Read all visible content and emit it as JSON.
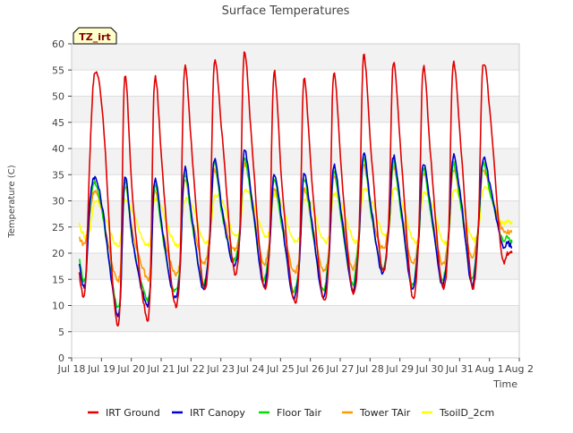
{
  "chart_data": {
    "type": "line",
    "title": "Surface Temperatures",
    "xlabel": "Time",
    "ylabel": "Temperature (C)",
    "badge": "TZ_irt",
    "ylim": [
      0,
      60
    ],
    "yticks": [
      0,
      5,
      10,
      15,
      20,
      25,
      30,
      35,
      40,
      45,
      50,
      55,
      60
    ],
    "xlim": [
      0,
      15
    ],
    "xticks": [
      {
        "x": 0,
        "label": "Jul 18"
      },
      {
        "x": 1,
        "label": "Jul 19"
      },
      {
        "x": 2,
        "label": "Jul 20"
      },
      {
        "x": 3,
        "label": "Jul 21"
      },
      {
        "x": 4,
        "label": "Jul 22"
      },
      {
        "x": 5,
        "label": "Jul 23"
      },
      {
        "x": 6,
        "label": "Jul 24"
      },
      {
        "x": 7,
        "label": "Jul 25"
      },
      {
        "x": 8,
        "label": "Jul 26"
      },
      {
        "x": 9,
        "label": "Jul 27"
      },
      {
        "x": 10,
        "label": "Jul 28"
      },
      {
        "x": 11,
        "label": "Jul 29"
      },
      {
        "x": 12,
        "label": "Jul 30"
      },
      {
        "x": 13,
        "label": "Jul 31"
      },
      {
        "x": 14,
        "label": "Aug 1"
      },
      {
        "x": 15,
        "label": "Aug 2"
      }
    ],
    "grid": "horizontal bands",
    "legend": "bottom",
    "series": [
      {
        "name": "IRT Ground",
        "color": "#e00000",
        "x": [
          0.25,
          0.45,
          0.62,
          0.78,
          1.05,
          1.4,
          1.62,
          1.78,
          2.05,
          2.4,
          2.62,
          2.78,
          3.05,
          3.4,
          3.62,
          3.78,
          4.05,
          4.4,
          4.62,
          4.78,
          5.05,
          5.4,
          5.62,
          5.78,
          6.05,
          6.4,
          6.62,
          6.78,
          7.05,
          7.4,
          7.62,
          7.78,
          8.05,
          8.4,
          8.62,
          8.78,
          9.05,
          9.4,
          9.62,
          9.78,
          10.05,
          10.4,
          10.62,
          10.78,
          11.05,
          11.4,
          11.62,
          11.78,
          12.05,
          12.4,
          12.62,
          12.78,
          13.05,
          13.4,
          13.62,
          13.78,
          14.05,
          14.4,
          14.62,
          14.75
        ],
        "y": [
          16,
          13,
          40,
          54.5,
          46,
          12.5,
          10,
          53.5,
          30,
          11,
          11,
          53,
          35,
          12,
          16,
          55,
          38,
          14,
          22,
          56,
          42,
          18,
          22,
          58,
          40,
          15,
          20,
          54.5,
          33,
          12,
          17,
          53,
          34,
          12,
          19,
          54.5,
          35,
          13,
          22,
          57.5,
          38,
          17,
          26,
          56.5,
          38,
          12,
          22,
          55.5,
          37,
          14,
          22,
          56,
          40,
          14,
          24,
          55.5,
          45,
          20,
          20,
          20
        ]
      },
      {
        "name": "IRT Canopy",
        "color": "#0000cc",
        "x": [
          0.25,
          0.45,
          0.62,
          0.78,
          1.05,
          1.4,
          1.62,
          1.78,
          2.05,
          2.4,
          2.62,
          2.78,
          3.05,
          3.4,
          3.62,
          3.78,
          4.05,
          4.4,
          4.62,
          4.78,
          5.05,
          5.4,
          5.62,
          5.78,
          6.05,
          6.4,
          6.62,
          6.78,
          7.05,
          7.4,
          7.62,
          7.78,
          8.05,
          8.4,
          8.62,
          8.78,
          9.05,
          9.4,
          9.62,
          9.78,
          10.05,
          10.4,
          10.62,
          10.78,
          11.05,
          11.4,
          11.62,
          11.78,
          12.05,
          12.4,
          12.62,
          12.78,
          13.05,
          13.4,
          13.62,
          13.78,
          14.05,
          14.4,
          14.62,
          14.75
        ],
        "y": [
          18,
          14,
          30,
          34.5,
          28,
          12,
          10,
          34.5,
          22,
          12,
          12,
          34,
          24,
          12,
          16,
          36,
          26,
          13,
          22,
          38,
          28,
          18,
          22,
          39.5,
          30,
          14,
          20,
          35,
          26,
          12,
          17,
          35,
          26,
          12,
          19,
          36.5,
          27,
          13,
          22,
          39,
          28,
          16,
          24,
          38.5,
          28,
          13,
          22,
          37,
          28,
          14,
          22,
          38.5,
          30,
          14,
          24,
          38,
          32,
          22,
          22,
          21
        ]
      },
      {
        "name": "Floor Tair",
        "color": "#00dd00",
        "x": [
          0.25,
          0.45,
          0.62,
          0.78,
          1.05,
          1.4,
          1.62,
          1.78,
          2.05,
          2.4,
          2.62,
          2.78,
          3.05,
          3.4,
          3.62,
          3.78,
          4.05,
          4.4,
          4.62,
          4.78,
          5.05,
          5.4,
          5.62,
          5.78,
          6.05,
          6.4,
          6.62,
          6.78,
          7.05,
          7.4,
          7.62,
          7.78,
          8.05,
          8.4,
          8.62,
          8.78,
          9.05,
          9.4,
          9.62,
          9.78,
          10.05,
          10.4,
          10.62,
          10.78,
          11.05,
          11.4,
          11.62,
          11.78,
          12.05,
          12.4,
          12.62,
          12.78,
          13.05,
          13.4,
          13.62,
          13.78,
          14.05,
          14.4,
          14.62,
          14.75
        ],
        "y": [
          19,
          15,
          29,
          33.5,
          27,
          13,
          11,
          33.5,
          22,
          13,
          13,
          33,
          23,
          13,
          17,
          35,
          25,
          14,
          22,
          37.5,
          27,
          19,
          23,
          38,
          29,
          15,
          21,
          34,
          25,
          13,
          18,
          34,
          25,
          13,
          20,
          35.5,
          26,
          14,
          23,
          38,
          27,
          17,
          24,
          37.5,
          27,
          14,
          22,
          36,
          27,
          15,
          22,
          37,
          29,
          15,
          24,
          37,
          31,
          23,
          23,
          22
        ]
      },
      {
        "name": "Tower TAir",
        "color": "#ff9900",
        "x": [
          0.25,
          0.45,
          0.62,
          0.78,
          1.05,
          1.4,
          1.62,
          1.78,
          2.05,
          2.4,
          2.62,
          2.78,
          3.05,
          3.4,
          3.62,
          3.78,
          4.05,
          4.4,
          4.62,
          4.78,
          5.05,
          5.4,
          5.62,
          5.78,
          6.05,
          6.4,
          6.62,
          6.78,
          7.05,
          7.4,
          7.62,
          7.78,
          8.05,
          8.4,
          8.62,
          8.78,
          9.05,
          9.4,
          9.62,
          9.78,
          10.05,
          10.4,
          10.62,
          10.78,
          11.05,
          11.4,
          11.62,
          11.78,
          12.05,
          12.4,
          12.62,
          12.78,
          13.05,
          13.4,
          13.62,
          13.78,
          14.05,
          14.4,
          14.62,
          14.75
        ],
        "y": [
          23,
          22,
          28,
          32,
          27,
          17,
          16,
          32.5,
          24,
          17,
          16,
          32,
          24,
          17,
          18,
          34,
          26,
          18,
          23,
          36,
          28,
          21,
          24,
          37,
          30,
          18,
          22,
          32,
          26,
          17,
          19,
          32,
          26,
          17,
          20,
          34.5,
          27,
          17,
          23,
          37,
          28,
          21,
          25,
          36.5,
          28,
          18,
          23,
          35,
          28,
          18,
          23,
          36,
          29,
          19,
          25,
          36,
          31,
          25,
          24,
          24
        ]
      },
      {
        "name": "TsoilD_2cm",
        "color": "#ffff00",
        "x": [
          0.25,
          0.45,
          0.62,
          0.78,
          1.05,
          1.4,
          1.62,
          1.78,
          2.05,
          2.4,
          2.62,
          2.78,
          3.05,
          3.4,
          3.62,
          3.78,
          4.05,
          4.4,
          4.62,
          4.78,
          5.05,
          5.4,
          5.62,
          5.78,
          6.05,
          6.4,
          6.62,
          6.78,
          7.05,
          7.4,
          7.62,
          7.78,
          8.05,
          8.4,
          8.62,
          8.78,
          9.05,
          9.4,
          9.62,
          9.78,
          10.05,
          10.4,
          10.62,
          10.78,
          11.05,
          11.4,
          11.62,
          11.78,
          12.05,
          12.4,
          12.62,
          12.78,
          13.05,
          13.4,
          13.62,
          13.78,
          14.05,
          14.4,
          14.62,
          14.75
        ],
        "y": [
          25.5,
          23,
          25,
          30,
          28,
          22.5,
          22,
          30,
          28,
          22.5,
          22,
          30,
          28,
          22.5,
          22,
          30,
          29,
          22.5,
          23,
          30.5,
          30,
          24,
          24,
          31.5,
          30,
          24,
          24,
          31,
          29,
          23,
          23,
          30,
          29,
          23,
          23,
          31,
          29,
          23,
          23,
          32,
          30,
          24,
          24,
          32,
          30,
          23,
          23,
          31,
          30,
          23,
          23,
          32,
          30,
          23,
          24,
          32,
          31,
          26,
          26,
          26
        ]
      }
    ]
  }
}
